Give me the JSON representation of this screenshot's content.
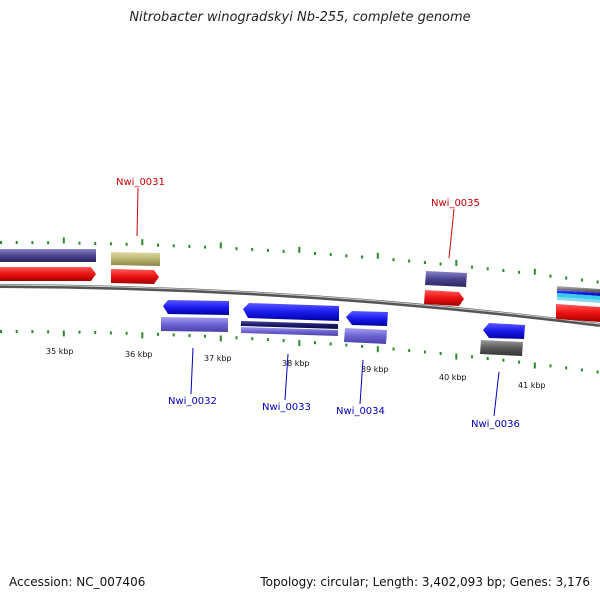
{
  "title": "Nitrobacter winogradskyi Nb-255, complete genome",
  "footer": {
    "accession": "Accession: NC_007406",
    "summary": "Topology: circular; Length: 3,402,093 bp; Genes: 3,176"
  },
  "colors": {
    "forward_strand": "#ee1111",
    "reverse_strand": "#1a1aee",
    "tick": "#2a8a2a",
    "forward_label": "#cc0000",
    "reverse_label": "#0000bb"
  },
  "ruler": [
    {
      "label": "35 kbp"
    },
    {
      "label": "36 kbp"
    },
    {
      "label": "37 kbp"
    },
    {
      "label": "38 kbp"
    },
    {
      "label": "39 kbp"
    },
    {
      "label": "40 kbp"
    },
    {
      "label": "41 kbp"
    }
  ],
  "gene_labels": [
    {
      "name": "Nwi_0031",
      "strand": "forward"
    },
    {
      "name": "Nwi_0035",
      "strand": "forward"
    },
    {
      "name": "Nwi_0032",
      "strand": "reverse"
    },
    {
      "name": "Nwi_0033",
      "strand": "reverse"
    },
    {
      "name": "Nwi_0034",
      "strand": "reverse"
    },
    {
      "name": "Nwi_0036",
      "strand": "reverse"
    }
  ]
}
